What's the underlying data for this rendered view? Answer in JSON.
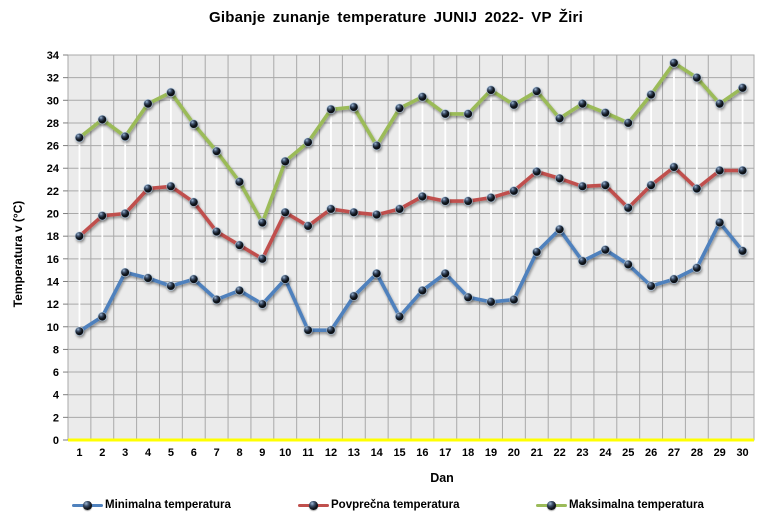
{
  "title": "Gibanje zunanje temperature JUNIJ 2022- VP Žiri",
  "y_axis_title": "Temperatura v (°C)",
  "x_axis_title": "Dan",
  "colors": {
    "plot_bg": "#EBEBEB",
    "gridline": "#A9A9A9",
    "zero_line": "#FFFF00",
    "high_low_line": "#FFFFFF",
    "text": "#000000",
    "series_min": "#4F81BD",
    "series_avg": "#C0504D",
    "series_max": "#9BBB59",
    "marker_dark": "#0B0E14"
  },
  "legend": {
    "position": "bottom",
    "items": [
      "Minimalna temperatura",
      "Povprečna temperatura",
      "Maksimalna temperatura"
    ]
  },
  "chart_data": {
    "type": "line",
    "title": "Gibanje zunanje temperature JUNIJ 2022- VP Žiri",
    "xlabel": "Dan",
    "ylabel": "Temperatura v (°C)",
    "x": [
      1,
      2,
      3,
      4,
      5,
      6,
      7,
      8,
      9,
      10,
      11,
      12,
      13,
      14,
      15,
      16,
      17,
      18,
      19,
      20,
      21,
      22,
      23,
      24,
      25,
      26,
      27,
      28,
      29,
      30
    ],
    "ylim": [
      0,
      34
    ],
    "ytick_step": 2,
    "grid": true,
    "high_low_lines": true,
    "legend_position": "bottom",
    "series": [
      {
        "name": "Minimalna temperatura",
        "color": "#4F81BD",
        "values": [
          9.6,
          10.9,
          14.8,
          14.3,
          13.6,
          14.2,
          12.4,
          13.2,
          12.0,
          14.2,
          9.7,
          9.7,
          12.7,
          14.7,
          10.9,
          13.2,
          14.7,
          12.6,
          12.2,
          12.4,
          16.6,
          18.6,
          15.8,
          16.8,
          15.5,
          13.6,
          14.2,
          15.2,
          19.2,
          16.7
        ]
      },
      {
        "name": "Povprečna temperatura",
        "color": "#C0504D",
        "values": [
          18.0,
          19.8,
          20.0,
          22.2,
          22.4,
          21.0,
          18.4,
          17.2,
          16.0,
          20.1,
          18.9,
          20.4,
          20.1,
          19.9,
          20.4,
          21.5,
          21.1,
          21.1,
          21.4,
          22.0,
          23.7,
          23.1,
          22.4,
          22.5,
          20.5,
          22.5,
          24.1,
          22.2,
          23.8,
          23.8
        ]
      },
      {
        "name": "Maksimalna temperatura",
        "color": "#9BBB59",
        "values": [
          26.7,
          28.3,
          26.8,
          29.7,
          30.7,
          27.9,
          25.5,
          22.8,
          19.2,
          24.6,
          26.3,
          29.2,
          29.4,
          26.0,
          29.3,
          30.3,
          28.8,
          28.8,
          30.9,
          29.6,
          30.8,
          28.4,
          29.7,
          28.9,
          28.0,
          30.5,
          33.3,
          32.0,
          29.7,
          31.1
        ]
      }
    ]
  }
}
